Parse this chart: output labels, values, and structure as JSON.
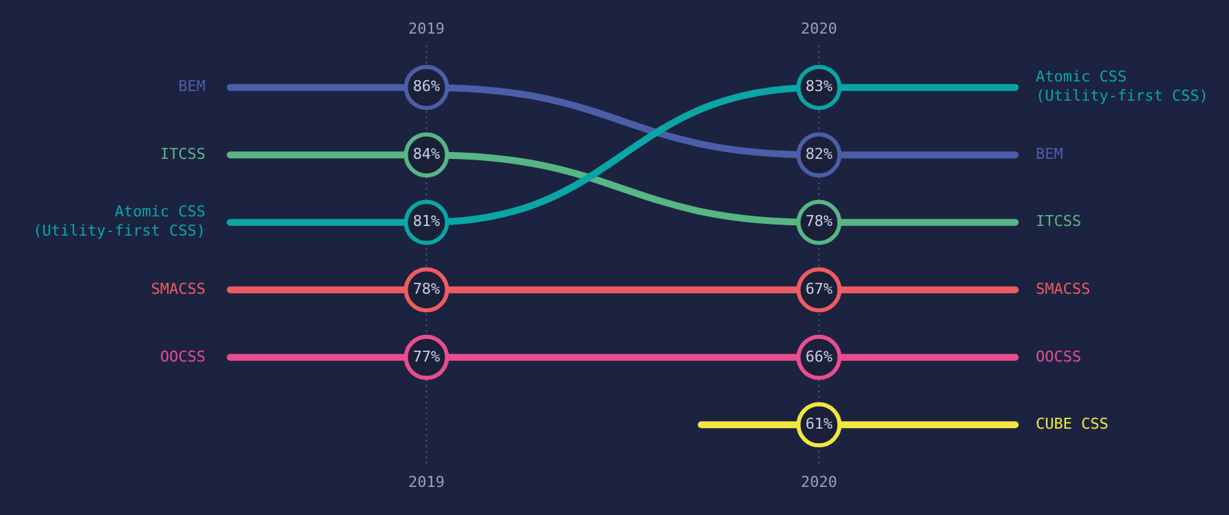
{
  "chart_data": {
    "type": "other",
    "categories": [
      "2019",
      "2020"
    ],
    "legend": false,
    "series": [
      {
        "name": "BEM",
        "color": "#4b5ea8",
        "values": [
          86,
          82
        ],
        "value_labels": [
          "86%",
          "82%"
        ]
      },
      {
        "name": "ITCSS",
        "color": "#57b586",
        "values": [
          84,
          78
        ],
        "value_labels": [
          "84%",
          "78%"
        ]
      },
      {
        "name": "Atomic CSS (Utility-first CSS)",
        "color": "#0aa6a6",
        "values": [
          81,
          83
        ],
        "value_labels": [
          "81%",
          "83%"
        ]
      },
      {
        "name": "SMACSS",
        "color": "#ef5b62",
        "values": [
          78,
          67
        ],
        "value_labels": [
          "78%",
          "67%"
        ]
      },
      {
        "name": "OOCSS",
        "color": "#e94d8f",
        "values": [
          77,
          66
        ],
        "value_labels": [
          "77%",
          "66%"
        ]
      },
      {
        "name": "CUBE CSS",
        "color": "#f2e640",
        "values": [
          null,
          61
        ],
        "value_labels": [
          null,
          "61%"
        ]
      }
    ]
  }
}
